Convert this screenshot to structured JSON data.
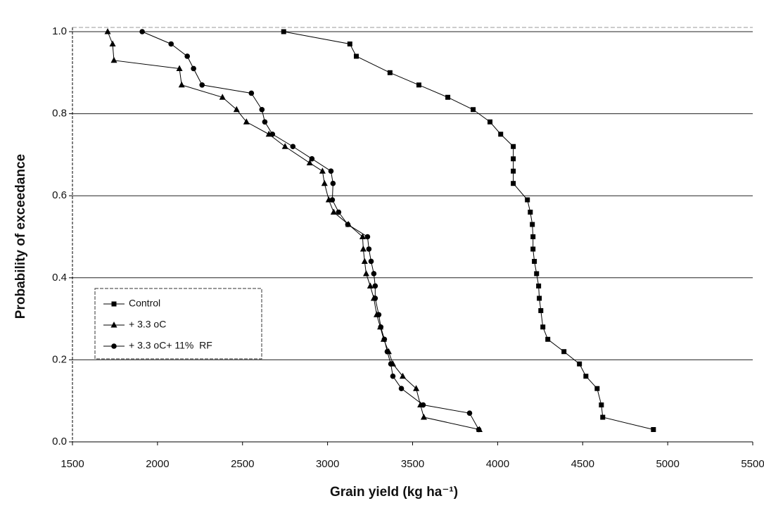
{
  "chart_data": {
    "type": "line",
    "x_label": "Grain yield (kg ha⁻¹)",
    "y_label": "Probability of exceedance",
    "xlim": [
      1500,
      5500
    ],
    "xticks": [
      1500,
      2000,
      2500,
      3000,
      3500,
      4000,
      4500,
      5000,
      5500
    ],
    "ylim": [
      0,
      1
    ],
    "yticks": [
      {
        "value": 0,
        "label": "0.0"
      },
      0.2,
      0.4,
      0.6,
      0.8,
      {
        "value": 1,
        "label": "1.0"
      }
    ],
    "grid": true,
    "legend": "lower left",
    "series": [
      {
        "name": "Control",
        "color": "#000000",
        "marker": "square",
        "x": [
          2742,
          3131,
          3169,
          3367,
          3537,
          3707,
          3856,
          3955,
          4018,
          4092,
          4092,
          4092,
          4092,
          4175,
          4192,
          4204,
          4208,
          4208,
          4216,
          4229,
          4241,
          4245,
          4254,
          4266,
          4295,
          4390,
          4481,
          4519,
          4585,
          4610,
          4618,
          4916
        ],
        "values": [
          1.0,
          0.97,
          0.94,
          0.9,
          0.87,
          0.84,
          0.81,
          0.78,
          0.75,
          0.72,
          0.69,
          0.66,
          0.63,
          0.59,
          0.56,
          0.53,
          0.5,
          0.47,
          0.44,
          0.41,
          0.38,
          0.35,
          0.32,
          0.28,
          0.25,
          0.22,
          0.19,
          0.16,
          0.13,
          0.09,
          0.06,
          0.03
        ]
      },
      {
        "name": "+ 3.3 oC",
        "color": "#000000",
        "marker": "triangle",
        "x": [
          1707,
          1736,
          1744,
          2129,
          2142,
          2382,
          2465,
          2523,
          2655,
          2750,
          2895,
          2970,
          2982,
          3007,
          3036,
          3123,
          3206,
          3210,
          3218,
          3227,
          3251,
          3272,
          3289,
          3310,
          3330,
          3359,
          3384,
          3442,
          3521,
          3546,
          3566,
          3893
        ],
        "values": [
          1.0,
          0.97,
          0.93,
          0.91,
          0.87,
          0.84,
          0.81,
          0.78,
          0.75,
          0.72,
          0.68,
          0.66,
          0.63,
          0.59,
          0.56,
          0.53,
          0.5,
          0.47,
          0.44,
          0.41,
          0.38,
          0.35,
          0.31,
          0.28,
          0.25,
          0.22,
          0.19,
          0.16,
          0.13,
          0.09,
          0.06,
          0.03
        ]
      },
      {
        "name": "+ 3.3 oC+ 11%  RF",
        "color": "#000000",
        "marker": "circle",
        "x": [
          1910,
          2080,
          2175,
          2212,
          2262,
          2552,
          2614,
          2631,
          2676,
          2796,
          2908,
          3020,
          3032,
          3028,
          3065,
          3119,
          3235,
          3243,
          3256,
          3272,
          3280,
          3280,
          3301,
          3313,
          3334,
          3351,
          3372,
          3384,
          3434,
          3562,
          3835,
          3889
        ],
        "values": [
          1.0,
          0.97,
          0.94,
          0.91,
          0.87,
          0.85,
          0.81,
          0.78,
          0.75,
          0.72,
          0.69,
          0.66,
          0.63,
          0.59,
          0.56,
          0.53,
          0.5,
          0.47,
          0.44,
          0.41,
          0.38,
          0.35,
          0.31,
          0.28,
          0.25,
          0.22,
          0.19,
          0.16,
          0.13,
          0.09,
          0.07,
          0.03
        ]
      }
    ]
  }
}
